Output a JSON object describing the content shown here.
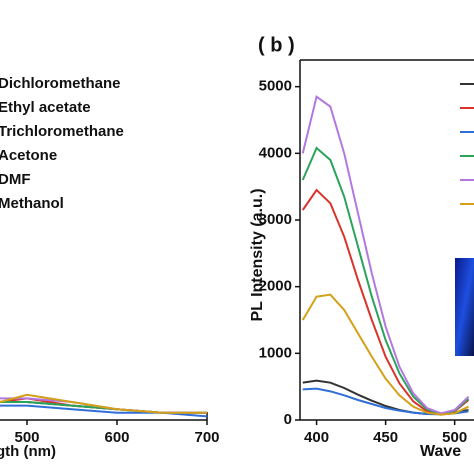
{
  "chart_data": [
    {
      "type": "line",
      "x_label": "gth (nm)",
      "x": [
        470,
        500,
        550,
        600,
        650,
        700
      ],
      "xlim": [
        470,
        700
      ],
      "xticks": [
        500,
        600,
        700
      ],
      "ylim": [
        0,
        1
      ],
      "series": [
        {
          "name": "Dichloromethane",
          "color": "#333333",
          "values": [
            0.05,
            0.05,
            0.04,
            0.03,
            0.02,
            0.02
          ]
        },
        {
          "name": "Ethyl acetate",
          "color": "#d9342b",
          "values": [
            0.05,
            0.06,
            0.04,
            0.03,
            0.02,
            0.02
          ]
        },
        {
          "name": "Trichloromethane",
          "color": "#2f6fd6",
          "values": [
            0.04,
            0.04,
            0.03,
            0.02,
            0.02,
            0.01
          ]
        },
        {
          "name": "Acetone",
          "color": "#2aa35b",
          "values": [
            0.05,
            0.05,
            0.04,
            0.03,
            0.02,
            0.02
          ]
        },
        {
          "name": "DMF",
          "color": "#b278e0",
          "values": [
            0.06,
            0.06,
            0.05,
            0.03,
            0.02,
            0.02
          ]
        },
        {
          "name": "Methanol",
          "color": "#d4a017",
          "values": [
            0.05,
            0.07,
            0.05,
            0.03,
            0.02,
            0.02
          ]
        }
      ]
    },
    {
      "type": "line",
      "panel": "( b )",
      "x_label": "Wave",
      "y_label": "PL Intensity (a.u.)",
      "x": [
        390,
        400,
        410,
        420,
        430,
        440,
        450,
        460,
        470,
        480,
        490,
        500,
        510
      ],
      "xlim": [
        388,
        514
      ],
      "xticks": [
        400,
        450,
        500
      ],
      "ylim": [
        0,
        5400
      ],
      "yticks": [
        0,
        1000,
        2000,
        3000,
        4000,
        5000
      ],
      "series": [
        {
          "color": "#333333",
          "values": [
            560,
            590,
            560,
            480,
            380,
            290,
            210,
            150,
            110,
            90,
            90,
            110,
            150
          ]
        },
        {
          "color": "#d9342b",
          "values": [
            3150,
            3450,
            3250,
            2750,
            2100,
            1500,
            950,
            550,
            280,
            130,
            80,
            130,
            300
          ]
        },
        {
          "color": "#2f6fd6",
          "values": [
            460,
            470,
            430,
            370,
            300,
            240,
            180,
            140,
            110,
            90,
            85,
            100,
            130
          ]
        },
        {
          "color": "#2aa35b",
          "values": [
            3600,
            4080,
            3900,
            3350,
            2600,
            1850,
            1200,
            700,
            350,
            160,
            90,
            140,
            320
          ]
        },
        {
          "color": "#b278e0",
          "values": [
            4000,
            4850,
            4700,
            4000,
            3100,
            2200,
            1400,
            800,
            400,
            180,
            100,
            150,
            350
          ]
        },
        {
          "color": "#d4a017",
          "values": [
            1500,
            1850,
            1880,
            1650,
            1300,
            950,
            620,
            370,
            200,
            110,
            80,
            100,
            200
          ]
        }
      ]
    }
  ]
}
